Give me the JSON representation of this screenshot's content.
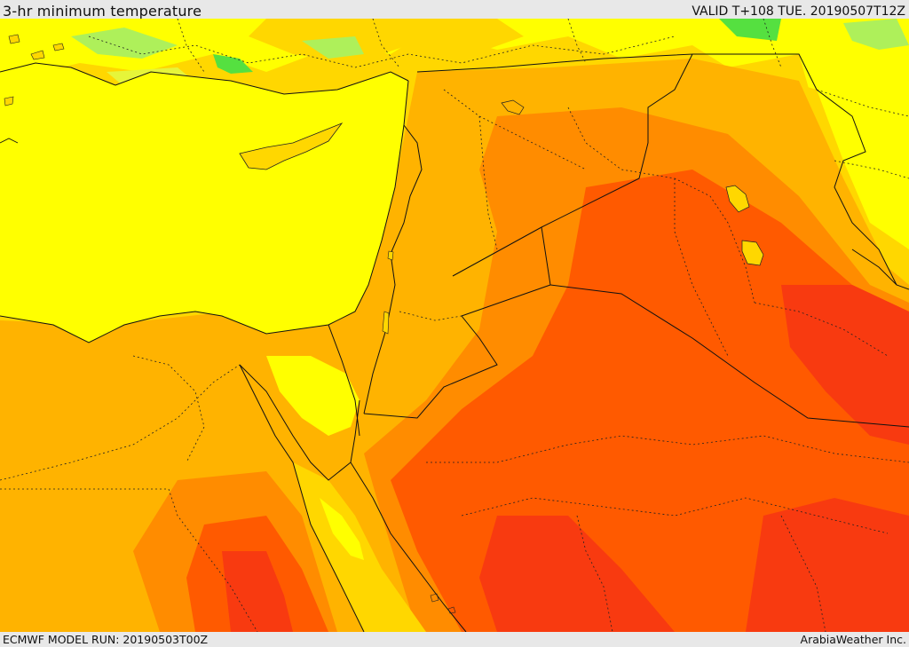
{
  "header": {
    "title": "3-hr minimum temperature",
    "valid": "VALID T+108 TUE. 20190507T12Z"
  },
  "footer": {
    "model_run": "ECMWF MODEL RUN: 20190503T00Z",
    "credit": "ArabiaWeather Inc."
  },
  "palette": {
    "green_light": "#aef05a",
    "green": "#55e040",
    "yellow_green": "#e6f53a",
    "yellow": "#ffff00",
    "gold": "#ffd700",
    "amber": "#ffb300",
    "orange": "#ff8c00",
    "orange_red": "#ff5a00",
    "red": "#f83a10"
  }
}
